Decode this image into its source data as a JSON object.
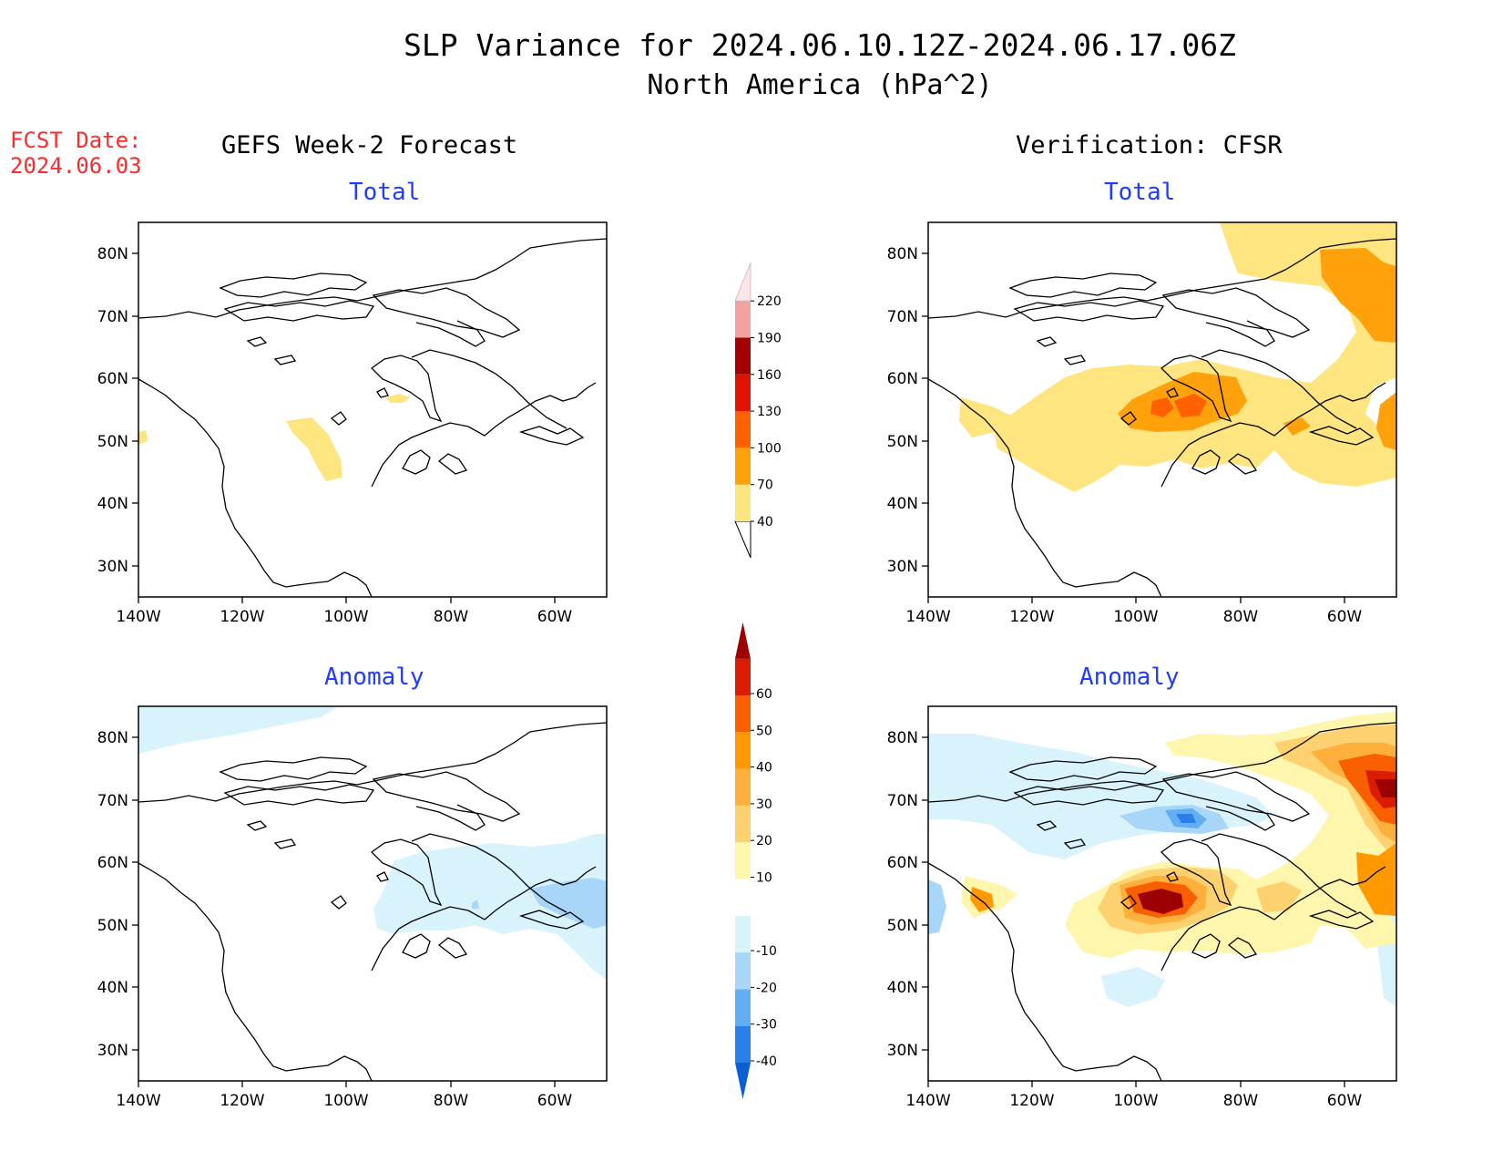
{
  "title": {
    "line1": "SLP Variance for 2024.06.10.12Z-2024.06.17.06Z",
    "line2": "North America (hPa^2)"
  },
  "fcst": {
    "label": "FCST Date:",
    "date": "2024.06.03"
  },
  "columns": {
    "left": "GEFS Week-2 Forecast",
    "right": "Verification: CFSR"
  },
  "subtitles": {
    "total": "Total",
    "anomaly": "Anomaly"
  },
  "axes": {
    "lat_ticks": [
      "80N",
      "70N",
      "60N",
      "50N",
      "40N",
      "30N"
    ],
    "lon_ticks": [
      "140W",
      "120W",
      "100W",
      "80W",
      "60W"
    ]
  },
  "colorbars": {
    "total": {
      "labels": [
        "40",
        "70",
        "100",
        "130",
        "160",
        "190",
        "220"
      ],
      "colors": [
        "#ffffff",
        "#fee57f",
        "#ffa10a",
        "#fe6100",
        "#e01400",
        "#a50000",
        "#f3a0a0",
        "#ffe6e6"
      ]
    },
    "anomaly": {
      "labels": [
        "-40",
        "-30",
        "-20",
        "-10",
        "10",
        "20",
        "30",
        "40",
        "50",
        "60"
      ],
      "colors": [
        "#0a5fd4",
        "#2b7fe8",
        "#62aef2",
        "#a8d6f8",
        "#d9f3fd",
        "#ffffff",
        "#fff6ad",
        "#fdd070",
        "#ffb03c",
        "#fe9a00",
        "#f85f00",
        "#db1c00",
        "#9c0000"
      ]
    }
  },
  "panels": [
    {
      "id": "forecast-total",
      "column": "left",
      "kind": "total"
    },
    {
      "id": "verification-total",
      "column": "right",
      "kind": "total"
    },
    {
      "id": "forecast-anomaly",
      "column": "left",
      "kind": "anomaly"
    },
    {
      "id": "verification-anomaly",
      "column": "right",
      "kind": "anomaly"
    }
  ]
}
